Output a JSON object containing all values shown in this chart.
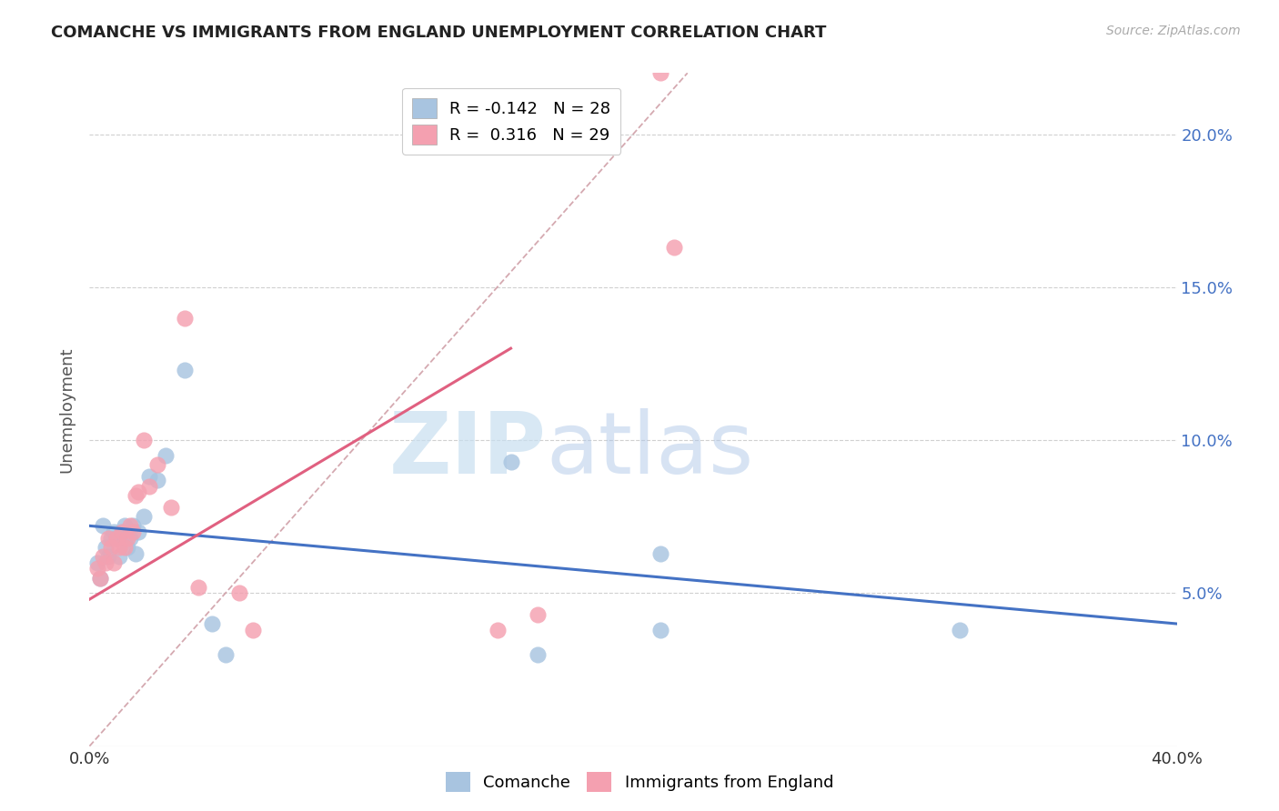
{
  "title": "COMANCHE VS IMMIGRANTS FROM ENGLAND UNEMPLOYMENT CORRELATION CHART",
  "source": "Source: ZipAtlas.com",
  "ylabel": "Unemployment",
  "xlim": [
    0.0,
    0.4
  ],
  "ylim": [
    0.0,
    0.22
  ],
  "yticks": [
    0.05,
    0.1,
    0.15,
    0.2
  ],
  "ytick_labels": [
    "5.0%",
    "10.0%",
    "15.0%",
    "20.0%"
  ],
  "comanche_R": "-0.142",
  "comanche_N": "28",
  "england_R": "0.316",
  "england_N": "29",
  "comanche_color": "#a8c4e0",
  "england_color": "#f4a0b0",
  "comanche_line_color": "#4472c4",
  "england_line_color": "#e06080",
  "diagonal_color": "#d0a0a8",
  "watermark_zip": "ZIP",
  "watermark_atlas": "atlas",
  "comanche_x": [
    0.003,
    0.004,
    0.005,
    0.006,
    0.007,
    0.008,
    0.009,
    0.01,
    0.011,
    0.012,
    0.013,
    0.014,
    0.015,
    0.016,
    0.017,
    0.018,
    0.02,
    0.022,
    0.025,
    0.028,
    0.035,
    0.045,
    0.05,
    0.155,
    0.165,
    0.21,
    0.21,
    0.32
  ],
  "comanche_y": [
    0.06,
    0.055,
    0.072,
    0.065,
    0.062,
    0.068,
    0.07,
    0.068,
    0.062,
    0.07,
    0.072,
    0.065,
    0.068,
    0.072,
    0.063,
    0.07,
    0.075,
    0.088,
    0.087,
    0.095,
    0.123,
    0.04,
    0.03,
    0.093,
    0.03,
    0.038,
    0.063,
    0.038
  ],
  "england_x": [
    0.003,
    0.004,
    0.005,
    0.006,
    0.007,
    0.008,
    0.009,
    0.01,
    0.011,
    0.012,
    0.013,
    0.014,
    0.015,
    0.016,
    0.017,
    0.018,
    0.02,
    0.022,
    0.025,
    0.03,
    0.035,
    0.04,
    0.055,
    0.06,
    0.15,
    0.165,
    0.17,
    0.21,
    0.215
  ],
  "england_y": [
    0.058,
    0.055,
    0.062,
    0.06,
    0.068,
    0.065,
    0.06,
    0.068,
    0.065,
    0.07,
    0.065,
    0.068,
    0.072,
    0.07,
    0.082,
    0.083,
    0.1,
    0.085,
    0.092,
    0.078,
    0.14,
    0.052,
    0.05,
    0.038,
    0.038,
    0.043,
    0.197,
    0.22,
    0.163
  ],
  "comanche_line_x0": 0.0,
  "comanche_line_y0": 0.072,
  "comanche_line_x1": 0.4,
  "comanche_line_y1": 0.04,
  "england_line_x0": 0.0,
  "england_line_y0": 0.048,
  "england_line_x1": 0.155,
  "england_line_y1": 0.13
}
